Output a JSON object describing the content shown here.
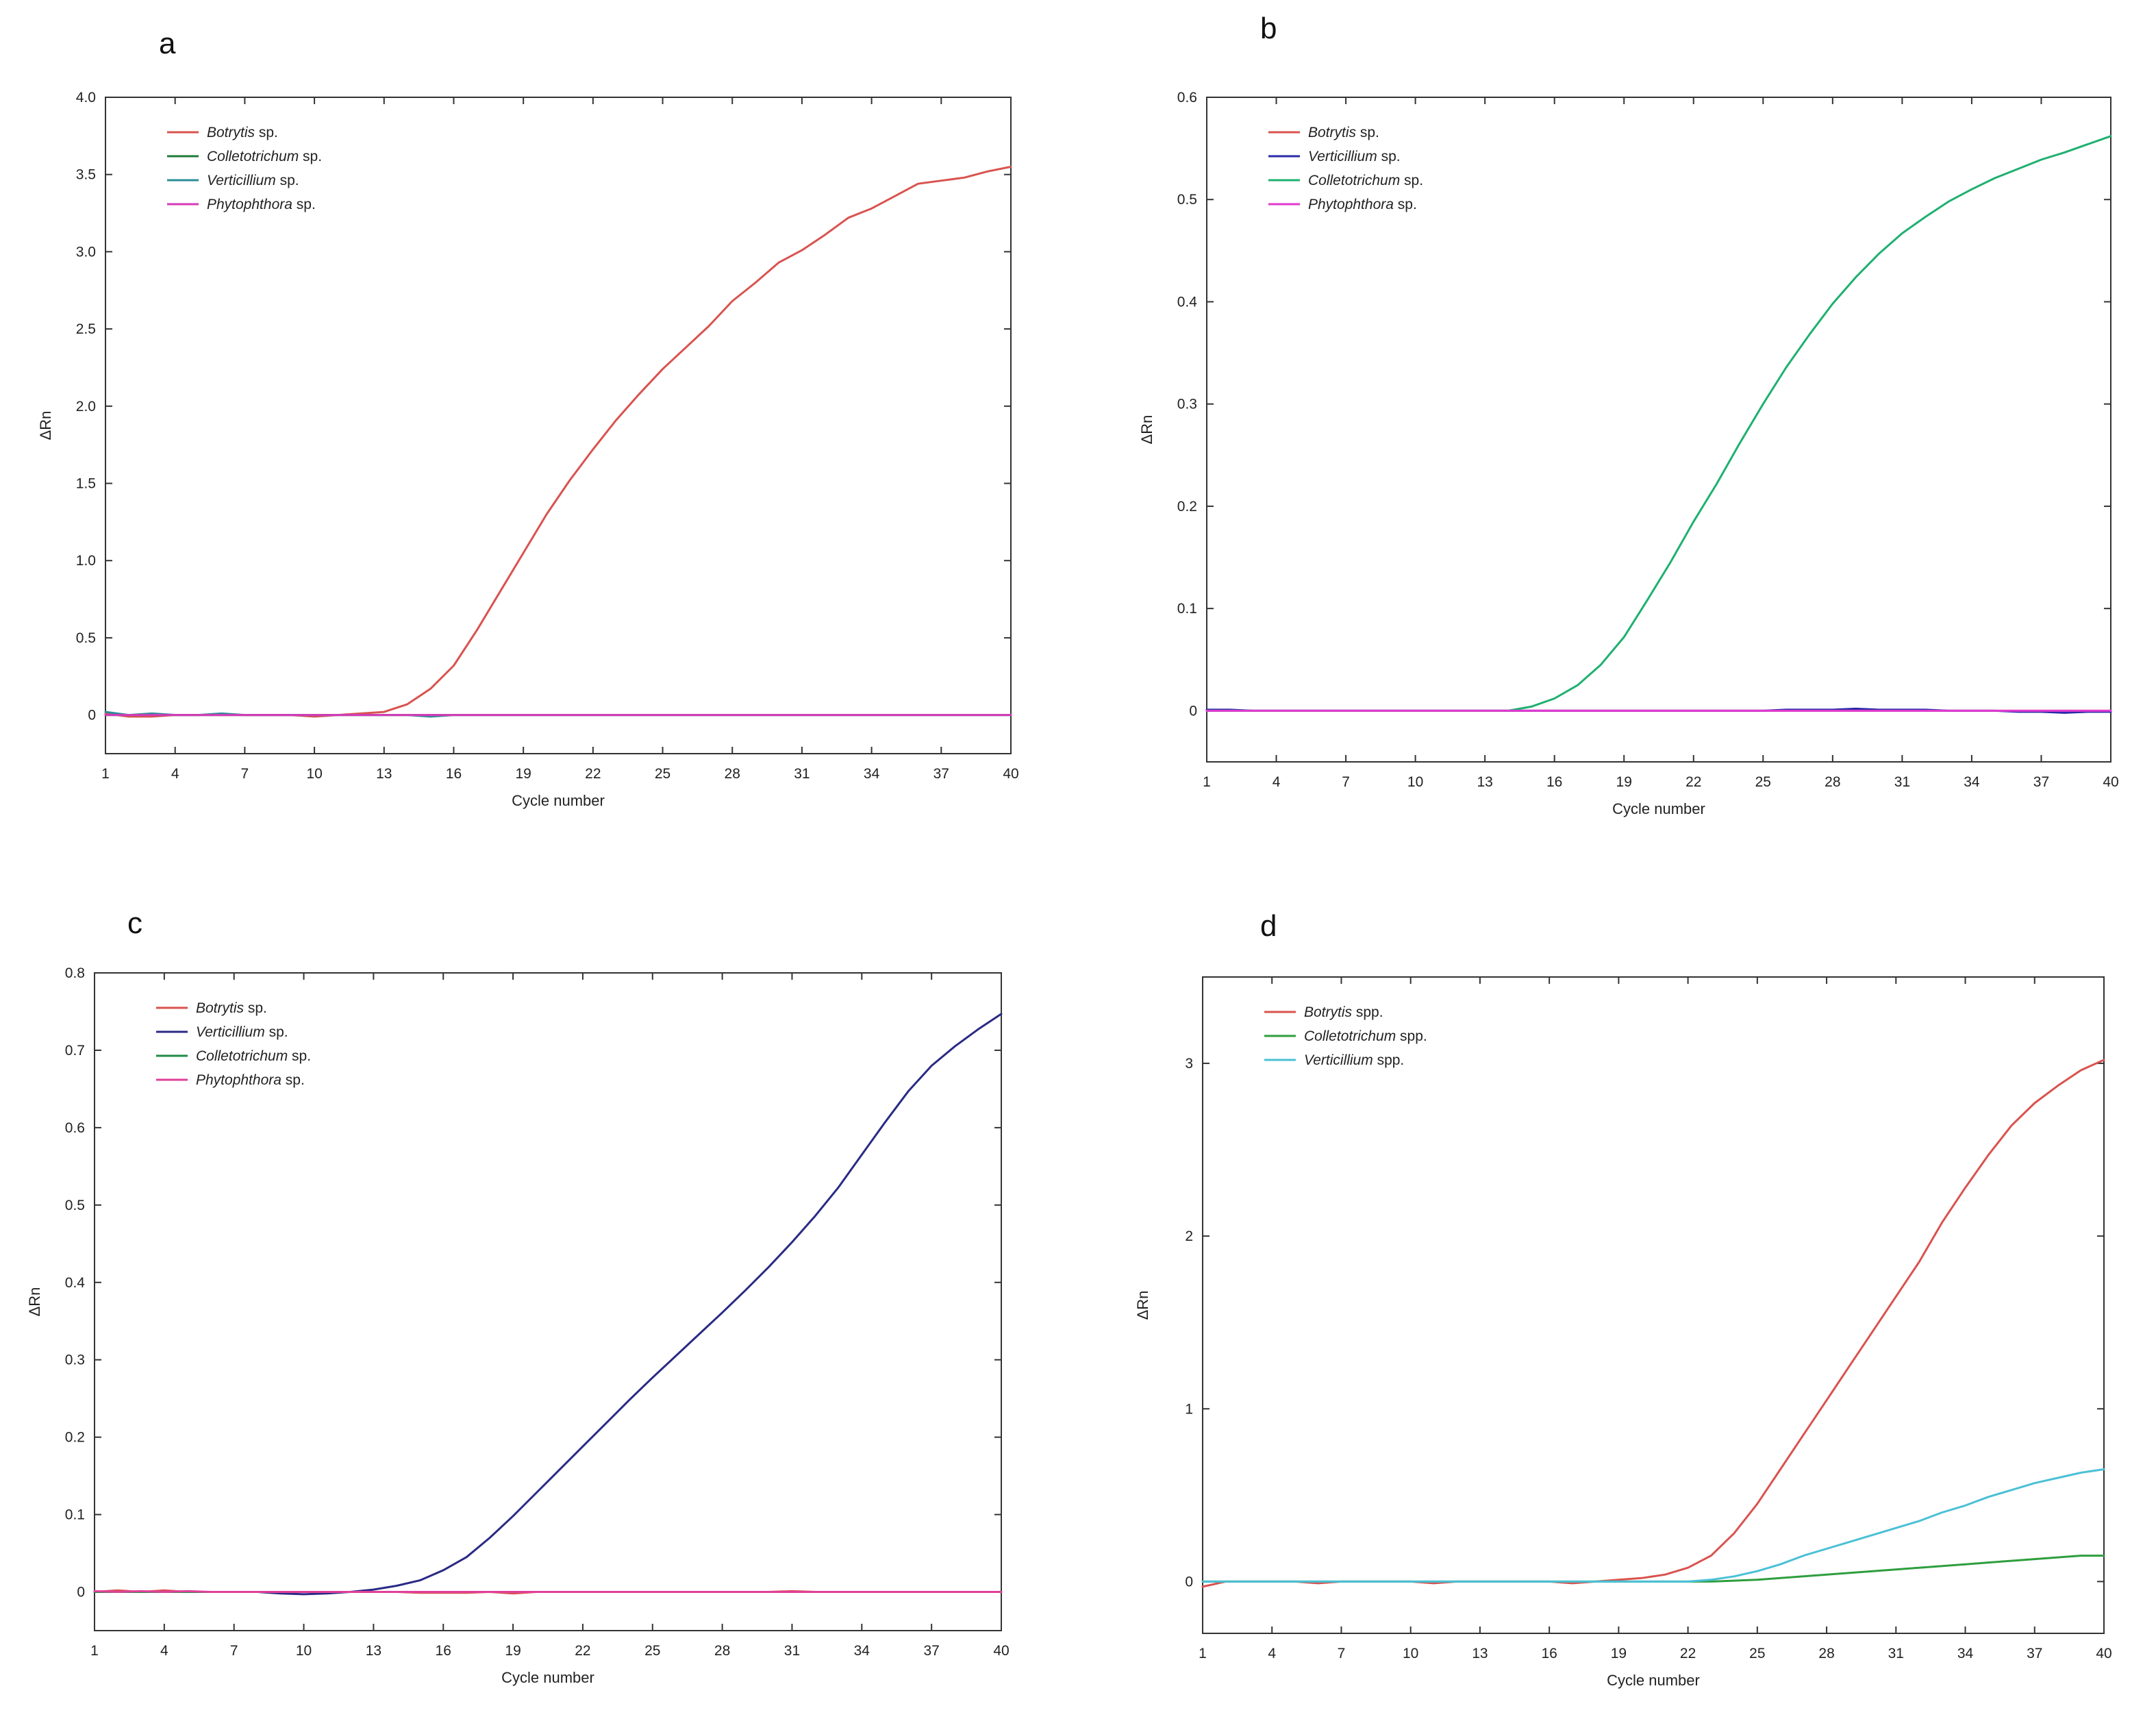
{
  "chart_data": [
    {
      "type": "line",
      "panel": "a",
      "xlabel": "Cycle number",
      "ylabel": "ΔRn",
      "xlim": [
        1,
        40
      ],
      "ylim": [
        -0.25,
        4.0
      ],
      "x_ticks": [
        1,
        4,
        7,
        10,
        13,
        16,
        19,
        22,
        25,
        28,
        31,
        34,
        37,
        40
      ],
      "y_ticks": [
        0,
        0.5,
        1.0,
        1.5,
        2.0,
        2.5,
        3.0,
        3.5,
        4.0
      ],
      "y_tick_labels": [
        "0",
        "0.5",
        "1.0",
        "1.5",
        "2.0",
        "2.5",
        "3.0",
        "3.5",
        "4.0"
      ],
      "x": [
        1,
        2,
        3,
        4,
        5,
        6,
        7,
        8,
        9,
        10,
        11,
        12,
        13,
        14,
        15,
        16,
        17,
        18,
        19,
        20,
        21,
        22,
        23,
        24,
        25,
        26,
        27,
        28,
        29,
        30,
        31,
        32,
        33,
        34,
        35,
        36,
        37,
        38,
        39,
        40
      ],
      "series": [
        {
          "name": "Botrytis",
          "suffix": " sp.",
          "color": "#d9534f",
          "values": [
            0.01,
            -0.01,
            -0.01,
            0.0,
            0.0,
            0.0,
            0.0,
            0.0,
            0.0,
            -0.01,
            0.0,
            0.01,
            0.02,
            0.07,
            0.17,
            0.32,
            0.55,
            0.8,
            1.05,
            1.3,
            1.52,
            1.72,
            1.91,
            2.08,
            2.24,
            2.38,
            2.52,
            2.68,
            2.8,
            2.93,
            3.01,
            3.11,
            3.22,
            3.28,
            3.36,
            3.44,
            3.46,
            3.48,
            3.52,
            3.55
          ]
        },
        {
          "name": "Colletotrichum",
          "suffix": " sp.",
          "color": "#1f7a3a",
          "values": [
            0.0,
            0.0,
            0.0,
            0.0,
            0.0,
            0.0,
            0.0,
            0.0,
            0.0,
            0.0,
            0.0,
            0.0,
            0.0,
            0.0,
            0.0,
            0.0,
            0.0,
            0.0,
            0.0,
            0.0,
            0.0,
            0.0,
            0.0,
            0.0,
            0.0,
            0.0,
            0.0,
            0.0,
            0.0,
            0.0,
            0.0,
            0.0,
            0.0,
            0.0,
            0.0,
            0.0,
            0.0,
            0.0,
            0.0,
            0.0
          ]
        },
        {
          "name": "Verticillium",
          "suffix": " sp.",
          "color": "#2c8c99",
          "values": [
            0.02,
            0.0,
            0.01,
            0.0,
            0.0,
            0.01,
            0.0,
            0.0,
            0.0,
            0.0,
            0.0,
            0.0,
            0.0,
            0.0,
            -0.01,
            0.0,
            0.0,
            0.0,
            0.0,
            0.0,
            0.0,
            0.0,
            0.0,
            0.0,
            0.0,
            0.0,
            0.0,
            0.0,
            0.0,
            0.0,
            0.0,
            0.0,
            0.0,
            0.0,
            0.0,
            0.0,
            0.0,
            0.0,
            0.0,
            0.0
          ]
        },
        {
          "name": "Phytophthora",
          "suffix": " sp.",
          "color": "#d63ab8",
          "values": [
            0.0,
            0.0,
            0.0,
            0.0,
            0.0,
            0.0,
            0.0,
            0.0,
            0.0,
            0.0,
            0.0,
            0.0,
            0.0,
            0.0,
            0.0,
            0.0,
            0.0,
            0.0,
            0.0,
            0.0,
            0.0,
            0.0,
            0.0,
            0.0,
            0.0,
            0.0,
            0.0,
            0.0,
            0.0,
            0.0,
            0.0,
            0.0,
            0.0,
            0.0,
            0.0,
            0.0,
            0.0,
            0.0,
            0.0,
            0.0
          ]
        }
      ]
    },
    {
      "type": "line",
      "panel": "b",
      "xlabel": "Cycle number",
      "ylabel": "ΔRn",
      "xlim": [
        1,
        40
      ],
      "ylim": [
        -0.05,
        0.6
      ],
      "x_ticks": [
        1,
        4,
        7,
        10,
        13,
        16,
        19,
        22,
        25,
        28,
        31,
        34,
        37,
        40
      ],
      "y_ticks": [
        0,
        0.1,
        0.2,
        0.3,
        0.4,
        0.5,
        0.6
      ],
      "y_tick_labels": [
        "0",
        "0.1",
        "0.2",
        "0.3",
        "0.4",
        "0.5",
        "0.6"
      ],
      "x": [
        1,
        2,
        3,
        4,
        5,
        6,
        7,
        8,
        9,
        10,
        11,
        12,
        13,
        14,
        15,
        16,
        17,
        18,
        19,
        20,
        21,
        22,
        23,
        24,
        25,
        26,
        27,
        28,
        29,
        30,
        31,
        32,
        33,
        34,
        35,
        36,
        37,
        38,
        39,
        40
      ],
      "series": [
        {
          "name": "Botrytis",
          "suffix": " sp.",
          "color": "#d9534f",
          "values": [
            0.0,
            0.0,
            0.0,
            0.0,
            0.0,
            0.0,
            0.0,
            0.0,
            0.0,
            0.0,
            0.0,
            0.0,
            0.0,
            0.0,
            0.0,
            0.0,
            0.0,
            0.0,
            0.0,
            0.0,
            0.0,
            0.0,
            0.0,
            0.0,
            0.0,
            0.0,
            0.0,
            0.0,
            0.0,
            0.0,
            0.0,
            0.0,
            0.0,
            0.0,
            0.0,
            0.0,
            0.0,
            0.0,
            0.0,
            0.0
          ]
        },
        {
          "name": "Verticillium",
          "suffix": " sp.",
          "color": "#2a2aa8",
          "values": [
            0.001,
            0.001,
            0.0,
            0.0,
            0.0,
            0.0,
            0.0,
            0.0,
            0.0,
            0.0,
            0.0,
            0.0,
            0.0,
            0.0,
            0.0,
            0.0,
            0.0,
            0.0,
            0.0,
            0.0,
            0.0,
            0.0,
            0.0,
            0.0,
            0.0,
            0.001,
            0.001,
            0.001,
            0.002,
            0.001,
            0.001,
            0.001,
            0.0,
            0.0,
            0.0,
            -0.001,
            -0.001,
            -0.002,
            -0.001,
            -0.001
          ]
        },
        {
          "name": "Colletotrichum",
          "suffix": " sp.",
          "color": "#1fb070",
          "values": [
            0.0,
            0.0,
            0.0,
            0.0,
            0.0,
            0.0,
            0.0,
            0.0,
            0.0,
            0.0,
            0.0,
            0.0,
            0.0,
            0.0,
            0.004,
            0.012,
            0.025,
            0.045,
            0.072,
            0.108,
            0.145,
            0.185,
            0.222,
            0.262,
            0.3,
            0.336,
            0.368,
            0.398,
            0.424,
            0.447,
            0.467,
            0.483,
            0.498,
            0.51,
            0.521,
            0.53,
            0.539,
            0.546,
            0.554,
            0.562
          ]
        },
        {
          "name": "Phytophthora",
          "suffix": " sp.",
          "color": "#e03ad0",
          "values": [
            0.0,
            0.0,
            0.0,
            0.0,
            0.0,
            0.0,
            0.0,
            0.0,
            0.0,
            0.0,
            0.0,
            0.0,
            0.0,
            0.0,
            0.0,
            0.0,
            0.0,
            0.0,
            0.0,
            0.0,
            0.0,
            0.0,
            0.0,
            0.0,
            0.0,
            0.0,
            0.0,
            0.0,
            0.0,
            0.0,
            0.0,
            0.0,
            0.0,
            0.0,
            0.0,
            0.0,
            0.0,
            0.0,
            0.0,
            0.0
          ]
        }
      ]
    },
    {
      "type": "line",
      "panel": "c",
      "xlabel": "Cycle number",
      "ylabel": "ΔRn",
      "xlim": [
        1,
        40
      ],
      "ylim": [
        -0.05,
        0.8
      ],
      "x_ticks": [
        1,
        4,
        7,
        10,
        13,
        16,
        19,
        22,
        25,
        28,
        31,
        34,
        37,
        40
      ],
      "y_ticks": [
        0,
        0.1,
        0.2,
        0.3,
        0.4,
        0.5,
        0.6,
        0.7,
        0.8
      ],
      "y_tick_labels": [
        "0",
        "0.1",
        "0.2",
        "0.3",
        "0.4",
        "0.5",
        "0.6",
        "0.7",
        "0.8"
      ],
      "x": [
        1,
        2,
        3,
        4,
        5,
        6,
        7,
        8,
        9,
        10,
        11,
        12,
        13,
        14,
        15,
        16,
        17,
        18,
        19,
        20,
        21,
        22,
        23,
        24,
        25,
        26,
        27,
        28,
        29,
        30,
        31,
        32,
        33,
        34,
        35,
        36,
        37,
        38,
        39,
        40
      ],
      "series": [
        {
          "name": "Botrytis",
          "suffix": " sp.",
          "color": "#d9534f",
          "values": [
            0.0,
            0.002,
            0.0,
            0.002,
            0.0,
            0.0,
            0.0,
            0.0,
            0.0,
            0.0,
            0.0,
            0.0,
            0.0,
            0.0,
            -0.001,
            -0.001,
            -0.001,
            0.0,
            -0.002,
            0.0,
            0.0,
            0.0,
            0.0,
            0.0,
            0.0,
            0.0,
            0.0,
            0.0,
            0.0,
            0.0,
            0.001,
            0.0,
            0.0,
            0.0,
            0.0,
            0.0,
            0.0,
            0.0,
            0.0,
            0.0
          ]
        },
        {
          "name": "Verticillium",
          "suffix": " sp.",
          "color": "#2a2a85",
          "values": [
            0.0,
            0.0,
            0.0,
            0.0,
            0.0,
            0.0,
            0.0,
            0.0,
            -0.002,
            -0.003,
            -0.002,
            0.0,
            0.003,
            0.008,
            0.015,
            0.028,
            0.045,
            0.07,
            0.098,
            0.128,
            0.158,
            0.188,
            0.218,
            0.248,
            0.277,
            0.305,
            0.333,
            0.361,
            0.39,
            0.42,
            0.452,
            0.486,
            0.523,
            0.565,
            0.607,
            0.647,
            0.68,
            0.705,
            0.727,
            0.747
          ]
        },
        {
          "name": "Colletotrichum",
          "suffix": " sp.",
          "color": "#1f8a45",
          "values": [
            0.0,
            0.0,
            0.0,
            0.0,
            0.0,
            0.0,
            0.0,
            0.0,
            0.0,
            0.0,
            0.0,
            0.0,
            0.0,
            0.0,
            0.0,
            0.0,
            0.0,
            0.0,
            0.0,
            0.0,
            0.0,
            0.0,
            0.0,
            0.0,
            0.0,
            0.0,
            0.0,
            0.0,
            0.0,
            0.0,
            0.0,
            0.0,
            0.0,
            0.0,
            0.0,
            0.0,
            0.0,
            0.0,
            0.0,
            0.0
          ]
        },
        {
          "name": "Phytophthora",
          "suffix": " sp.",
          "color": "#e0409a",
          "values": [
            0.001,
            0.0,
            0.001,
            0.0,
            0.001,
            0.0,
            0.0,
            0.0,
            0.0,
            0.0,
            0.0,
            0.0,
            0.0,
            0.0,
            0.0,
            0.0,
            0.0,
            0.0,
            0.0,
            0.0,
            0.0,
            0.0,
            0.0,
            0.0,
            0.0,
            0.0,
            0.0,
            0.0,
            0.0,
            0.0,
            0.0,
            0.0,
            0.0,
            0.0,
            0.0,
            0.0,
            0.0,
            0.0,
            0.0,
            0.0
          ]
        }
      ]
    },
    {
      "type": "line",
      "panel": "d",
      "xlabel": "Cycle number",
      "ylabel": "ΔRn",
      "xlim": [
        1,
        40
      ],
      "ylim": [
        -0.3,
        3.5
      ],
      "x_ticks": [
        1,
        4,
        7,
        10,
        13,
        16,
        19,
        22,
        25,
        28,
        31,
        34,
        37,
        40
      ],
      "y_ticks": [
        0,
        1,
        2,
        3
      ],
      "y_tick_labels": [
        "0",
        "1",
        "2",
        "3"
      ],
      "x": [
        1,
        2,
        3,
        4,
        5,
        6,
        7,
        8,
        9,
        10,
        11,
        12,
        13,
        14,
        15,
        16,
        17,
        18,
        19,
        20,
        21,
        22,
        23,
        24,
        25,
        26,
        27,
        28,
        29,
        30,
        31,
        32,
        33,
        34,
        35,
        36,
        37,
        38,
        39,
        40
      ],
      "series": [
        {
          "name": "Botrytis",
          "suffix": " spp.",
          "color": "#d9534f",
          "values": [
            -0.03,
            0.0,
            0.0,
            0.0,
            0.0,
            -0.01,
            0.0,
            0.0,
            0.0,
            0.0,
            -0.01,
            0.0,
            0.0,
            0.0,
            0.0,
            0.0,
            -0.01,
            0.0,
            0.01,
            0.02,
            0.04,
            0.08,
            0.15,
            0.28,
            0.45,
            0.65,
            0.85,
            1.05,
            1.25,
            1.45,
            1.65,
            1.85,
            2.08,
            2.28,
            2.47,
            2.64,
            2.77,
            2.87,
            2.96,
            3.02
          ]
        },
        {
          "name": "Colletotrichum",
          "suffix": " spp.",
          "color": "#2e9e3e",
          "values": [
            0.0,
            0.0,
            0.0,
            0.0,
            0.0,
            0.0,
            0.0,
            0.0,
            0.0,
            0.0,
            0.0,
            0.0,
            0.0,
            0.0,
            0.0,
            0.0,
            0.0,
            0.0,
            0.0,
            0.0,
            0.0,
            0.0,
            0.0,
            0.005,
            0.01,
            0.02,
            0.03,
            0.04,
            0.05,
            0.06,
            0.07,
            0.08,
            0.09,
            0.1,
            0.11,
            0.12,
            0.13,
            0.14,
            0.15,
            0.15
          ]
        },
        {
          "name": "Verticillium",
          "suffix": " spp.",
          "color": "#4ac0d6",
          "values": [
            0.0,
            0.0,
            0.0,
            0.0,
            0.0,
            0.0,
            0.0,
            0.0,
            0.0,
            0.0,
            0.0,
            0.0,
            0.0,
            0.0,
            0.0,
            0.0,
            0.0,
            0.0,
            0.0,
            0.0,
            0.0,
            0.0,
            0.01,
            0.03,
            0.06,
            0.1,
            0.15,
            0.19,
            0.23,
            0.27,
            0.31,
            0.35,
            0.4,
            0.44,
            0.49,
            0.53,
            0.57,
            0.6,
            0.63,
            0.65
          ]
        }
      ]
    }
  ]
}
